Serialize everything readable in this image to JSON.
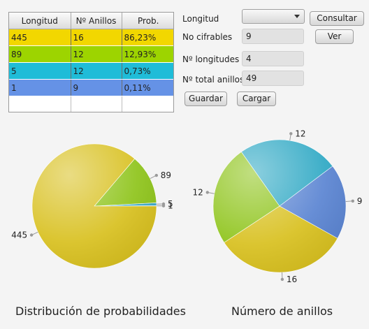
{
  "table": {
    "headers": [
      "Longitud",
      "Nº Anillos",
      "Prob."
    ],
    "rows": [
      {
        "cells": [
          "445",
          "16",
          "86,23%"
        ],
        "color": "#f2d700"
      },
      {
        "cells": [
          "89",
          "12",
          "12,93%"
        ],
        "color": "#9dd400"
      },
      {
        "cells": [
          "5",
          "12",
          "0,73%"
        ],
        "color": "#1fbcd8"
      },
      {
        "cells": [
          "1",
          "9",
          "0,11%"
        ],
        "color": "#6592e6"
      }
    ]
  },
  "form": {
    "longitud_label": "Longitud",
    "longitud_value": "",
    "consultar_label": "Consultar",
    "no_cifrables_label": "No cifrables",
    "no_cifrables_value": "9",
    "ver_label": "Ver",
    "num_longitudes_label": "Nº longitudes",
    "num_longitudes_value": "4",
    "total_anillos_label": "Nº total anillos",
    "total_anillos_value": "49",
    "guardar_label": "Guardar",
    "cargar_label": "Cargar"
  },
  "chart_data": [
    {
      "type": "pie",
      "title": "Distribución de probabilidades",
      "slices": [
        {
          "label": "445",
          "value": 86.23,
          "color": "#d8c01e"
        },
        {
          "label": "89",
          "value": 12.93,
          "color": "#8ec41a"
        },
        {
          "label": "5",
          "value": 0.73,
          "color": "#3aa9c9"
        },
        {
          "label": "1",
          "value": 0.11,
          "color": "#5a84d2"
        }
      ]
    },
    {
      "type": "pie",
      "title": "Número de anillos",
      "slices": [
        {
          "label": "16",
          "value": 16,
          "color": "#d8c01e"
        },
        {
          "label": "12",
          "value": 12,
          "color": "#8ec41a"
        },
        {
          "label": "12",
          "value": 12,
          "color": "#2ea8c4"
        },
        {
          "label": "9",
          "value": 9,
          "color": "#5a84d2"
        }
      ]
    }
  ]
}
